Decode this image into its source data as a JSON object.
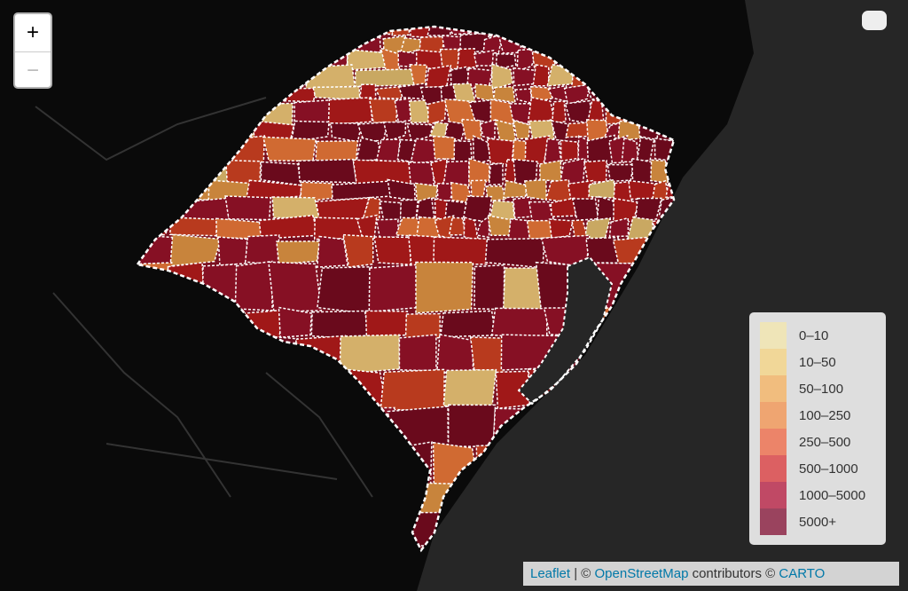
{
  "zoom_control": {
    "zoom_in": "+",
    "zoom_out": "−"
  },
  "legend": {
    "items": [
      {
        "label": "0–10",
        "color": "#f2e6b1"
      },
      {
        "label": "10–50",
        "color": "#f5d68c"
      },
      {
        "label": "50–100",
        "color": "#f4b76d"
      },
      {
        "label": "100–250",
        "color": "#f29b5e"
      },
      {
        "label": "250–500",
        "color": "#ee7455"
      },
      {
        "label": "500–1000",
        "color": "#dc4a4c"
      },
      {
        "label": "1000–5000",
        "color": "#bb2f50"
      },
      {
        "label": "5000+",
        "color": "#8e2848"
      }
    ]
  },
  "attribution": {
    "leaflet": "Leaflet",
    "separator": "| ©",
    "osm": "OpenStreetMap",
    "contributors": "contributors ©",
    "carto": "CARTO"
  }
}
